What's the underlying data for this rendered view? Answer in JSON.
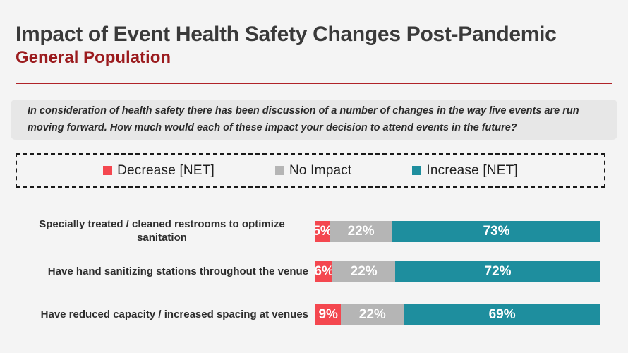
{
  "header": {
    "title": "Impact of Event Health Safety Changes Post-Pandemic",
    "subtitle": "General Population"
  },
  "question": {
    "text": "In consideration of health safety there has been discussion of a number of changes in the way live events are run moving forward. How much would each of these impact your decision to attend events in the future?"
  },
  "legend": {
    "items": [
      {
        "label": "Decrease [NET]",
        "color": "#f4474f"
      },
      {
        "label": "No Impact",
        "color": "#b5b5b5"
      },
      {
        "label": "Increase [NET]",
        "color": "#1e8e9e"
      }
    ]
  },
  "chart_data": {
    "type": "bar",
    "orientation": "horizontal",
    "stacked": true,
    "xlim": [
      0,
      100
    ],
    "grid": false,
    "legend_position": "top",
    "categories": [
      "Specially treated / cleaned restrooms to optimize sanitation",
      "Have hand sanitizing stations throughout the venue",
      "Have reduced capacity / increased spacing at venues"
    ],
    "series": [
      {
        "name": "Decrease [NET]",
        "color": "#f4474f",
        "values": [
          5,
          6,
          9
        ]
      },
      {
        "name": "No Impact",
        "color": "#b5b5b5",
        "values": [
          22,
          22,
          22
        ]
      },
      {
        "name": "Increase [NET]",
        "color": "#1e8e9e",
        "values": [
          73,
          72,
          69
        ]
      }
    ],
    "value_labels": [
      [
        "5%",
        "22%",
        "73%"
      ],
      [
        "6%",
        "22%",
        "72%"
      ],
      [
        "9%",
        "22%",
        "69%"
      ]
    ]
  },
  "colors": {
    "background": "#f4f4f4",
    "title": "#3a3a3a",
    "subtitle": "#9b1b1e",
    "divider": "#b02328",
    "question_box": "#e7e7e7"
  }
}
